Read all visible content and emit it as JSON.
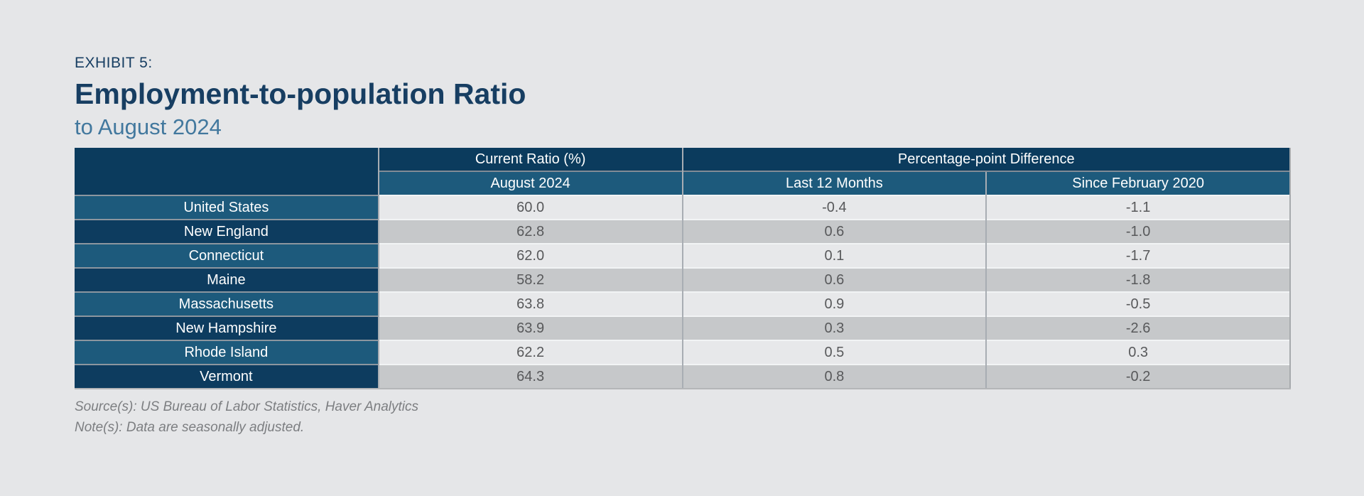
{
  "exhibit": {
    "label": "EXHIBIT 5:",
    "title": "Employment-to-population Ratio",
    "subtitle": "to August 2024"
  },
  "footer": {
    "source": "Source(s): US Bureau of Labor Statistics, Haver Analytics",
    "note": "Note(s): Data are seasonally adjusted."
  },
  "colors": {
    "background": "#e5e6e8",
    "header_navy": "#0b3b5d",
    "header_blue": "#1d5a7c",
    "label_navy": "#0d3c5f",
    "row_light": "#e7e8ea",
    "row_dark": "#c6c8ca",
    "title_navy": "#173e62",
    "subtitle_blue": "#42789e",
    "data_text": "#58595b",
    "footer_text": "#7c7e81"
  },
  "chart_data": {
    "type": "table",
    "title": "Employment-to-population Ratio",
    "subtitle": "to August 2024",
    "exhibit_label": "EXHIBIT 5:",
    "column_groups": [
      {
        "label": "",
        "span": 1
      },
      {
        "label": "Current Ratio (%)",
        "span": 1
      },
      {
        "label": "Percentage-point Difference",
        "span": 2
      }
    ],
    "columns": [
      "",
      "August 2024",
      "Last 12 Months",
      "Since February 2020"
    ],
    "rows": [
      {
        "label": "United States",
        "current": "60.0",
        "last_12_months": "-0.4",
        "since_feb_2020": "-1.1"
      },
      {
        "label": "New England",
        "current": "62.8",
        "last_12_months": "0.6",
        "since_feb_2020": "-1.0"
      },
      {
        "label": "Connecticut",
        "current": "62.0",
        "last_12_months": "0.1",
        "since_feb_2020": "-1.7"
      },
      {
        "label": "Maine",
        "current": "58.2",
        "last_12_months": "0.6",
        "since_feb_2020": "-1.8"
      },
      {
        "label": "Massachusetts",
        "current": "63.8",
        "last_12_months": "0.9",
        "since_feb_2020": "-0.5"
      },
      {
        "label": "New Hampshire",
        "current": "63.9",
        "last_12_months": "0.3",
        "since_feb_2020": "-2.6"
      },
      {
        "label": "Rhode Island",
        "current": "62.2",
        "last_12_months": "0.5",
        "since_feb_2020": "0.3"
      },
      {
        "label": "Vermont",
        "current": "64.3",
        "last_12_months": "0.8",
        "since_feb_2020": "-0.2"
      }
    ],
    "source": "Source(s): US Bureau of Labor Statistics, Haver Analytics",
    "note": "Note(s): Data are seasonally adjusted."
  }
}
